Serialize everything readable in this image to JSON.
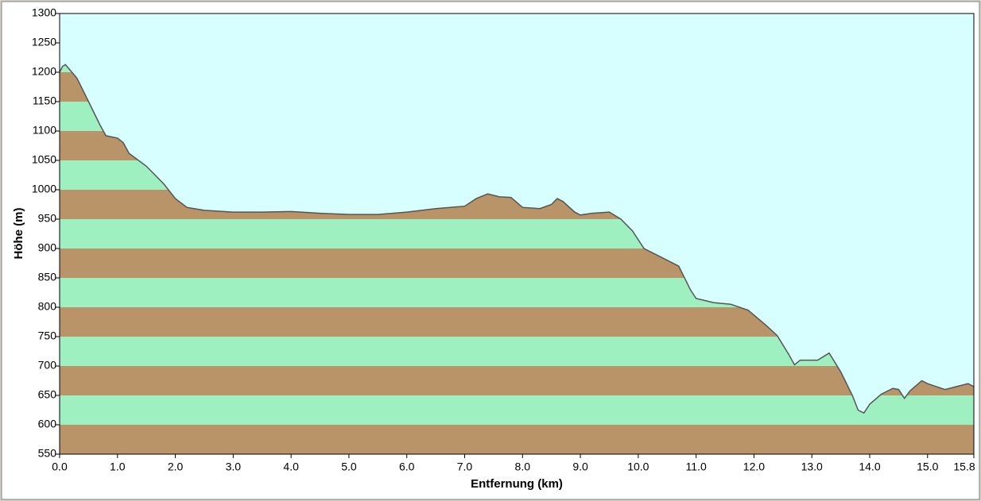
{
  "chart_data": {
    "type": "area",
    "x_label": "Entfernung   (km)",
    "y_label": "Höhe (m)",
    "x": [
      0,
      0.05,
      0.1,
      0.3,
      0.5,
      0.7,
      0.8,
      1.0,
      1.1,
      1.2,
      1.5,
      1.8,
      2.0,
      2.2,
      2.5,
      3.0,
      3.5,
      4.0,
      4.5,
      5.0,
      5.5,
      6.0,
      6.5,
      7.0,
      7.2,
      7.4,
      7.6,
      7.8,
      8.0,
      8.3,
      8.5,
      8.6,
      8.7,
      8.9,
      9.0,
      9.2,
      9.5,
      9.7,
      9.9,
      10.1,
      10.4,
      10.7,
      10.9,
      11.0,
      11.3,
      11.6,
      11.9,
      12.2,
      12.4,
      12.6,
      12.7,
      12.8,
      13.1,
      13.3,
      13.5,
      13.7,
      13.8,
      13.9,
      14.0,
      14.2,
      14.4,
      14.5,
      14.6,
      14.7,
      14.9,
      15.0,
      15.3,
      15.5,
      15.7,
      15.8
    ],
    "values": [
      1200,
      1210,
      1213,
      1190,
      1150,
      1110,
      1092,
      1088,
      1080,
      1062,
      1040,
      1010,
      985,
      970,
      965,
      962,
      962,
      963,
      960,
      958,
      958,
      962,
      968,
      972,
      985,
      993,
      988,
      987,
      970,
      968,
      975,
      985,
      980,
      962,
      957,
      960,
      962,
      950,
      930,
      900,
      885,
      870,
      830,
      815,
      808,
      805,
      795,
      770,
      752,
      720,
      702,
      710,
      710,
      722,
      690,
      650,
      625,
      620,
      635,
      652,
      662,
      660,
      645,
      658,
      675,
      670,
      660,
      665,
      670,
      665
    ],
    "color": "#555555",
    "background": "#d8ffff",
    "band_colors": [
      "#b89468",
      "#9ef0c0"
    ],
    "xlim": [
      0,
      15.8
    ],
    "ylim": [
      550,
      1300
    ],
    "xticks": [
      {
        "value": 0,
        "label": "0.0"
      },
      {
        "value": 1,
        "label": "1.0"
      },
      {
        "value": 2,
        "label": "2.0"
      },
      {
        "value": 3,
        "label": "3.0"
      },
      {
        "value": 4,
        "label": "4.0"
      },
      {
        "value": 5,
        "label": "5.0"
      },
      {
        "value": 6,
        "label": "6.0"
      },
      {
        "value": 7,
        "label": "7.0"
      },
      {
        "value": 8,
        "label": "8.0"
      },
      {
        "value": 9,
        "label": "9.0"
      },
      {
        "value": 10,
        "label": "10.0"
      },
      {
        "value": 11,
        "label": "11.0"
      },
      {
        "value": 12,
        "label": "12.0"
      },
      {
        "value": 13,
        "label": "13.0"
      },
      {
        "value": 14,
        "label": "14.0"
      },
      {
        "value": 15,
        "label": "15.0"
      },
      15.8
    ],
    "yticks": [
      550,
      600,
      650,
      700,
      750,
      800,
      850,
      900,
      950,
      1000,
      1050,
      1100,
      1150,
      1200,
      1250,
      1300
    ]
  }
}
